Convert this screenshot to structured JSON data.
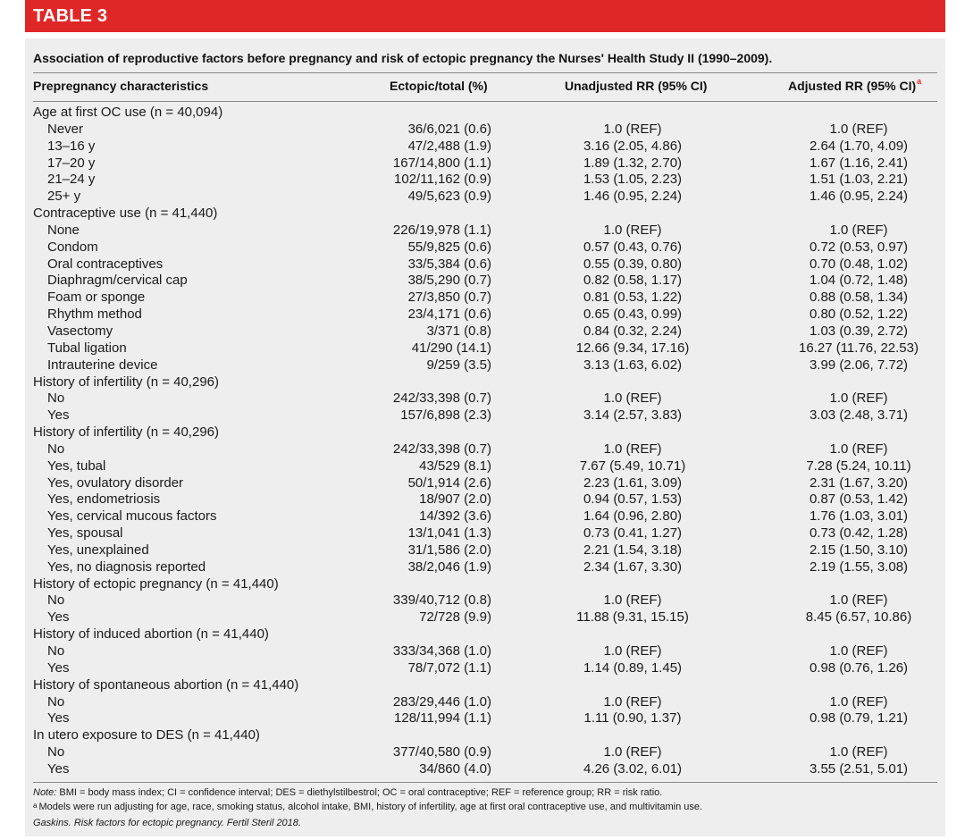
{
  "banner": {
    "title": "TABLE 3",
    "color": "#e02727"
  },
  "caption": "Association of reproductive factors before pregnancy and risk of ectopic pregnancy the Nurses' Health Study II (1990–2009).",
  "columns": {
    "characteristics": "Prepregnancy characteristics",
    "ectopic_total": "Ectopic/total (%)",
    "unadjusted": "Unadjusted RR (95% CI)",
    "adjusted": "Adjusted RR (95% CI)",
    "adjusted_marker": "a"
  },
  "rows": [
    {
      "type": "group",
      "label": "Age at first OC use (n = 40,094)"
    },
    {
      "type": "item",
      "label": "Never",
      "ectopic": "36/6,021 (0.6)",
      "unadj": "1.0 (REF)",
      "adj": "1.0 (REF)"
    },
    {
      "type": "item",
      "label": "13–16 y",
      "ectopic": "47/2,488 (1.9)",
      "unadj": "3.16 (2.05, 4.86)",
      "adj": "2.64 (1.70, 4.09)"
    },
    {
      "type": "item",
      "label": "17–20 y",
      "ectopic": "167/14,800 (1.1)",
      "unadj": "1.89 (1.32, 2.70)",
      "adj": "1.67 (1.16, 2.41)"
    },
    {
      "type": "item",
      "label": "21–24 y",
      "ectopic": "102/11,162 (0.9)",
      "unadj": "1.53 (1.05, 2.23)",
      "adj": "1.51 (1.03, 2.21)"
    },
    {
      "type": "item",
      "label": "25+ y",
      "ectopic": "49/5,623 (0.9)",
      "unadj": "1.46 (0.95, 2.24)",
      "adj": "1.46 (0.95, 2.24)"
    },
    {
      "type": "group",
      "label": "Contraceptive use (n = 41,440)"
    },
    {
      "type": "item",
      "label": "None",
      "ectopic": "226/19,978 (1.1)",
      "unadj": "1.0 (REF)",
      "adj": "1.0 (REF)"
    },
    {
      "type": "item",
      "label": "Condom",
      "ectopic": "55/9,825 (0.6)",
      "unadj": "0.57 (0.43, 0.76)",
      "adj": "0.72 (0.53, 0.97)"
    },
    {
      "type": "item",
      "label": "Oral contraceptives",
      "ectopic": "33/5,384 (0.6)",
      "unadj": "0.55 (0.39, 0.80)",
      "adj": "0.70 (0.48, 1.02)"
    },
    {
      "type": "item",
      "label": "Diaphragm/cervical cap",
      "ectopic": "38/5,290 (0.7)",
      "unadj": "0.82 (0.58, 1.17)",
      "adj": "1.04 (0.72, 1.48)"
    },
    {
      "type": "item",
      "label": "Foam or sponge",
      "ectopic": "27/3,850 (0.7)",
      "unadj": "0.81 (0.53, 1.22)",
      "adj": "0.88 (0.58, 1.34)"
    },
    {
      "type": "item",
      "label": "Rhythm method",
      "ectopic": "23/4,171 (0.6)",
      "unadj": "0.65 (0.43, 0.99)",
      "adj": "0.80 (0.52, 1.22)"
    },
    {
      "type": "item",
      "label": "Vasectomy",
      "ectopic": "3/371 (0.8)",
      "unadj": "0.84 (0.32, 2.24)",
      "adj": "1.03 (0.39, 2.72)"
    },
    {
      "type": "item",
      "label": "Tubal ligation",
      "ectopic": "41/290 (14.1)",
      "unadj": "12.66 (9.34, 17.16)",
      "adj": "16.27 (11.76, 22.53)"
    },
    {
      "type": "item",
      "label": "Intrauterine device",
      "ectopic": "9/259 (3.5)",
      "unadj": "3.13 (1.63, 6.02)",
      "adj": "3.99 (2.06, 7.72)"
    },
    {
      "type": "group",
      "label": "History of infertility (n = 40,296)"
    },
    {
      "type": "item",
      "label": "No",
      "ectopic": "242/33,398 (0.7)",
      "unadj": "1.0 (REF)",
      "adj": "1.0 (REF)"
    },
    {
      "type": "item",
      "label": "Yes",
      "ectopic": "157/6,898 (2.3)",
      "unadj": "3.14 (2.57, 3.83)",
      "adj": "3.03 (2.48, 3.71)"
    },
    {
      "type": "group",
      "label": "History of infertility (n = 40,296)"
    },
    {
      "type": "item",
      "label": "No",
      "ectopic": "242/33,398 (0.7)",
      "unadj": "1.0 (REF)",
      "adj": "1.0 (REF)"
    },
    {
      "type": "item",
      "label": "Yes, tubal",
      "ectopic": "43/529 (8.1)",
      "unadj": "7.67 (5.49, 10.71)",
      "adj": "7.28 (5.24, 10.11)"
    },
    {
      "type": "item",
      "label": "Yes, ovulatory disorder",
      "ectopic": "50/1,914 (2.6)",
      "unadj": "2.23 (1.61, 3.09)",
      "adj": "2.31 (1.67, 3.20)"
    },
    {
      "type": "item",
      "label": "Yes, endometriosis",
      "ectopic": "18/907 (2.0)",
      "unadj": "0.94 (0.57, 1.53)",
      "adj": "0.87 (0.53, 1.42)"
    },
    {
      "type": "item",
      "label": "Yes, cervical mucous factors",
      "ectopic": "14/392 (3.6)",
      "unadj": "1.64 (0.96, 2.80)",
      "adj": "1.76 (1.03, 3.01)"
    },
    {
      "type": "item",
      "label": "Yes, spousal",
      "ectopic": "13/1,041 (1.3)",
      "unadj": "0.73 (0.41, 1.27)",
      "adj": "0.73 (0.42, 1.28)"
    },
    {
      "type": "item",
      "label": "Yes, unexplained",
      "ectopic": "31/1,586 (2.0)",
      "unadj": "2.21 (1.54, 3.18)",
      "adj": "2.15 (1.50, 3.10)"
    },
    {
      "type": "item",
      "label": "Yes, no diagnosis reported",
      "ectopic": "38/2,046 (1.9)",
      "unadj": "2.34 (1.67, 3.30)",
      "adj": "2.19 (1.55, 3.08)"
    },
    {
      "type": "group",
      "label": "History of ectopic pregnancy (n = 41,440)"
    },
    {
      "type": "item",
      "label": "No",
      "ectopic": "339/40,712 (0.8)",
      "unadj": "1.0 (REF)",
      "adj": "1.0 (REF)"
    },
    {
      "type": "item",
      "label": "Yes",
      "ectopic": "72/728 (9.9)",
      "unadj": "11.88 (9.31, 15.15)",
      "adj": "8.45 (6.57, 10.86)"
    },
    {
      "type": "group",
      "label": "History of induced abortion (n = 41,440)"
    },
    {
      "type": "item",
      "label": "No",
      "ectopic": "333/34,368 (1.0)",
      "unadj": "1.0 (REF)",
      "adj": "1.0 (REF)"
    },
    {
      "type": "item",
      "label": "Yes",
      "ectopic": "78/7,072 (1.1)",
      "unadj": "1.14 (0.89, 1.45)",
      "adj": "0.98 (0.76, 1.26)"
    },
    {
      "type": "group",
      "label": "History of spontaneous abortion (n = 41,440)"
    },
    {
      "type": "item",
      "label": "No",
      "ectopic": "283/29,446 (1.0)",
      "unadj": "1.0 (REF)",
      "adj": "1.0 (REF)"
    },
    {
      "type": "item",
      "label": "Yes",
      "ectopic": "128/11,994 (1.1)",
      "unadj": "1.11 (0.90, 1.37)",
      "adj": "0.98 (0.79, 1.21)"
    },
    {
      "type": "group",
      "label": "In utero exposure to DES (n = 41,440)"
    },
    {
      "type": "item",
      "label": "No",
      "ectopic": "377/40,580 (0.9)",
      "unadj": "1.0 (REF)",
      "adj": "1.0 (REF)"
    },
    {
      "type": "item",
      "label": "Yes",
      "ectopic": "34/860 (4.0)",
      "unadj": "4.26 (3.02, 6.01)",
      "adj": "3.55 (2.51, 5.01)"
    }
  ],
  "notes": {
    "note_prefix": "Note:",
    "note_text": " BMI = body mass index; CI = confidence interval; DES = diethylstilbestrol; OC = oral contraceptive; REF = reference group; RR = risk ratio.",
    "footnote_marker": "a",
    "footnote_text": "Models were run adjusting for age, race, smoking status, alcohol intake, BMI, history of infertility, age at first oral contraceptive use, and multivitamin use."
  },
  "citation": "Gaskins. Risk factors for ectopic pregnancy. Fertil Steril 2018."
}
